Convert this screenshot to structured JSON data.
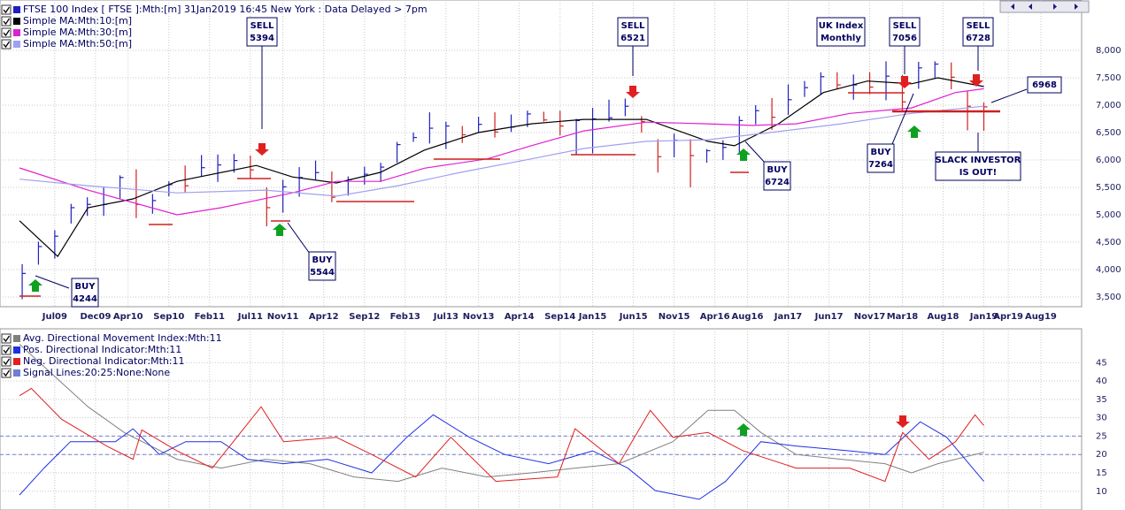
{
  "chart_data": [
    {
      "type": "ohlc",
      "name": "FTSE 100 Index [ FTSE ]:Mth:[m]  31Jan2019 16:45 New York : Data Delayed > 7pm",
      "color": "#2020c0",
      "up_color": "#2020c0",
      "down_color": "#d02020",
      "xlim": [
        2008.94,
        2020.0
      ],
      "ylim": [
        3323,
        8919
      ],
      "xticks": [
        {
          "value": 2009.5,
          "label": "Jul09"
        },
        {
          "value": 2009.917,
          "label": "Dec09"
        },
        {
          "value": 2010.25,
          "label": "Apr10"
        },
        {
          "value": 2010.667,
          "label": "Sep10"
        },
        {
          "value": 2011.083,
          "label": "Feb11"
        },
        {
          "value": 2011.5,
          "label": "Jul11"
        },
        {
          "value": 2011.833,
          "label": "Nov11"
        },
        {
          "value": 2012.25,
          "label": "Apr12"
        },
        {
          "value": 2012.667,
          "label": "Sep12"
        },
        {
          "value": 2013.083,
          "label": "Feb13"
        },
        {
          "value": 2013.5,
          "label": "Jul13"
        },
        {
          "value": 2013.833,
          "label": "Nov13"
        },
        {
          "value": 2014.25,
          "label": "Apr14"
        },
        {
          "value": 2014.667,
          "label": "Sep14"
        },
        {
          "value": 2015.0,
          "label": "Jan15"
        },
        {
          "value": 2015.417,
          "label": "Jun15"
        },
        {
          "value": 2015.833,
          "label": "Nov15"
        },
        {
          "value": 2016.25,
          "label": "Apr16"
        },
        {
          "value": 2016.583,
          "label": "Aug16"
        },
        {
          "value": 2017.0,
          "label": "Jan17"
        },
        {
          "value": 2017.417,
          "label": "Jun17"
        },
        {
          "value": 2017.833,
          "label": "Nov17"
        },
        {
          "value": 2018.167,
          "label": "Mar18"
        },
        {
          "value": 2018.583,
          "label": "Aug18"
        },
        {
          "value": 2019.0,
          "label": "Jan19"
        },
        {
          "value": 2019.25,
          "label": "Apr19"
        },
        {
          "value": 2019.583,
          "label": "Aug19"
        }
      ],
      "yticks": [
        {
          "value": 3500,
          "label": "3,500"
        },
        {
          "value": 4000,
          "label": "4,000"
        },
        {
          "value": 4500,
          "label": "4,500"
        },
        {
          "value": 5000,
          "label": "5,000"
        },
        {
          "value": 5500,
          "label": "5,500"
        },
        {
          "value": 6000,
          "label": "6,000"
        },
        {
          "value": 6500,
          "label": "6,500"
        },
        {
          "value": 7000,
          "label": "7,000"
        },
        {
          "value": 7500,
          "label": "7,500"
        },
        {
          "value": 8000,
          "label": "8,000"
        }
      ],
      "grid": true,
      "x": [
        2009.167,
        2009.333,
        2009.5,
        2009.667,
        2009.833,
        2010.0,
        2010.167,
        2010.333,
        2010.5,
        2010.667,
        2010.833,
        2011.0,
        2011.167,
        2011.333,
        2011.5,
        2011.667,
        2011.833,
        2012.0,
        2012.167,
        2012.333,
        2012.5,
        2012.667,
        2012.833,
        2013.0,
        2013.167,
        2013.333,
        2013.5,
        2013.667,
        2013.833,
        2014.0,
        2014.167,
        2014.333,
        2014.5,
        2014.667,
        2014.833,
        2015.0,
        2015.167,
        2015.333,
        2015.5,
        2015.667,
        2015.833,
        2016.0,
        2016.167,
        2016.333,
        2016.5,
        2016.667,
        2016.833,
        2017.0,
        2017.167,
        2017.333,
        2017.5,
        2017.667,
        2017.833,
        2018.0,
        2018.167,
        2018.333,
        2018.5,
        2018.667,
        2018.833,
        2019.0
      ],
      "high": [
        4100,
        4510,
        4720,
        5200,
        5320,
        5500,
        5720,
        5830,
        5380,
        5610,
        5900,
        6090,
        6100,
        6110,
        6080,
        5500,
        5640,
        5870,
        5990,
        5790,
        5700,
        5880,
        5950,
        6330,
        6500,
        6870,
        6700,
        6620,
        6790,
        6870,
        6830,
        6900,
        6880,
        6900,
        6750,
        6950,
        7100,
        7120,
        6800,
        6380,
        6480,
        6380,
        6200,
        6360,
        6800,
        7000,
        7130,
        7380,
        7440,
        7600,
        7600,
        7560,
        7600,
        7800,
        7550,
        7790,
        7800,
        7780,
        7250,
        7050
      ],
      "low": [
        3460,
        4090,
        4200,
        4840,
        4980,
        4980,
        5300,
        4940,
        5020,
        5340,
        5400,
        5700,
        5600,
        5770,
        5650,
        4790,
        5040,
        5330,
        5640,
        5230,
        5350,
        5550,
        5600,
        5950,
        6330,
        6300,
        6200,
        6310,
        6510,
        6410,
        6510,
        6600,
        6700,
        6450,
        6100,
        6120,
        6700,
        6800,
        6500,
        5770,
        6050,
        5500,
        5950,
        6000,
        6100,
        6650,
        6550,
        6820,
        7150,
        7200,
        7300,
        7100,
        7200,
        7090,
        6870,
        7300,
        7500,
        7290,
        6540,
        6530
      ],
      "close": [
        3930,
        4420,
        4610,
        5130,
        5190,
        5190,
        5680,
        5190,
        5260,
        5550,
        5530,
        5860,
        5910,
        5990,
        5820,
        5130,
        5510,
        5680,
        5770,
        5320,
        5640,
        5740,
        5870,
        6280,
        6410,
        6580,
        6620,
        6460,
        6650,
        6510,
        6600,
        6840,
        6730,
        6620,
        6720,
        6750,
        6770,
        6980,
        6700,
        6060,
        6360,
        6080,
        6170,
        6230,
        6720,
        6900,
        6780,
        7100,
        7320,
        7520,
        7370,
        7370,
        7330,
        7530,
        7060,
        7680,
        7750,
        7510,
        6980,
        6970
      ],
      "overlays": [
        {
          "name": "Simple MA:Mth:10:[m]",
          "color": "#000000",
          "x": [
            2009.14,
            2009.53,
            2009.84,
            2010.3,
            2010.75,
            2011.56,
            2011.93,
            2012.38,
            2012.83,
            2013.28,
            2013.83,
            2014.37,
            2014.91,
            2015.55,
            2016.18,
            2016.45,
            2016.9,
            2017.36,
            2017.81,
            2018.26,
            2018.53,
            2019.0
          ],
          "values": [
            4890,
            4240,
            5130,
            5290,
            5610,
            5900,
            5690,
            5580,
            5775,
            6180,
            6500,
            6660,
            6740,
            6740,
            6340,
            6260,
            6660,
            7230,
            7440,
            7390,
            7500,
            7340
          ]
        },
        {
          "name": "Simple MA:Mth:30:[m]",
          "color": "#e020d0",
          "x": [
            2009.14,
            2009.84,
            2010.75,
            2011.2,
            2011.93,
            2012.38,
            2012.83,
            2013.28,
            2013.92,
            2014.37,
            2014.91,
            2015.55,
            2016.18,
            2016.63,
            2017.08,
            2017.63,
            2018.26,
            2018.71,
            2019.0
          ],
          "values": [
            5855,
            5450,
            5000,
            5130,
            5400,
            5610,
            5610,
            5850,
            6020,
            6260,
            6530,
            6690,
            6660,
            6630,
            6660,
            6850,
            6950,
            7230,
            7300
          ]
        },
        {
          "name": "Simple MA:Mth:50:[m]",
          "color": "#a0a0f0",
          "x": [
            2009.14,
            2009.84,
            2010.75,
            2011.65,
            2012.38,
            2013.01,
            2013.65,
            2014.37,
            2014.91,
            2015.55,
            2016.18,
            2016.81,
            2017.54,
            2018.26,
            2019.0
          ],
          "values": [
            5650,
            5530,
            5400,
            5450,
            5340,
            5530,
            5775,
            6020,
            6210,
            6340,
            6370,
            6500,
            6660,
            6850,
            6980
          ]
        }
      ],
      "annotations": [
        {
          "lines": [
            "SELL",
            "5394"
          ]
        },
        {
          "lines": [
            "BUY",
            "4244"
          ]
        },
        {
          "lines": [
            "BUY",
            "5544"
          ]
        },
        {
          "lines": [
            "SELL",
            "6521"
          ]
        },
        {
          "lines": [
            "BUY",
            "6724"
          ]
        },
        {
          "lines": [
            "UK Index",
            "Monthly"
          ]
        },
        {
          "lines": [
            "SELL",
            "7056"
          ]
        },
        {
          "lines": [
            "BUY",
            "7264"
          ]
        },
        {
          "lines": [
            "SELL",
            "6728"
          ]
        },
        {
          "lines": [
            "SLACK INVESTOR",
            "IS OUT!"
          ]
        },
        {
          "lines": [
            "6968"
          ]
        }
      ]
    },
    {
      "type": "line",
      "xlim": [
        2008.94,
        2020.0
      ],
      "ylim": [
        4.9,
        54.2
      ],
      "yticks": [
        10,
        15,
        20,
        25,
        30,
        35,
        40,
        45
      ],
      "grid": true,
      "signal_lines": {
        "name": "Signal Lines:20:25:None:None",
        "color": "#7080d0",
        "values": [
          20,
          25
        ]
      },
      "series": [
        {
          "name": "Avg. Directional Movement Index:Mth:11",
          "color": "#808080",
          "x": [
            2009.14,
            2009.84,
            2010.21,
            2010.75,
            2011.2,
            2011.65,
            2012.11,
            2012.56,
            2013.01,
            2013.46,
            2013.92,
            2014.37,
            2014.82,
            2015.27,
            2015.82,
            2016.18,
            2016.45,
            2016.72,
            2017.08,
            2017.54,
            2017.99,
            2018.26,
            2018.53,
            2019.0
          ],
          "values": [
            50,
            33,
            26,
            18.7,
            16.3,
            18.7,
            17.5,
            13.9,
            12.7,
            16.3,
            13.9,
            15,
            16.3,
            17.5,
            23.5,
            32,
            32,
            26,
            20,
            18.7,
            17.5,
            15,
            17.5,
            20.6
          ]
        },
        {
          "name": "Pos. Directional Indicator:Mth:11",
          "color": "#2030e0",
          "x": [
            2009.14,
            2009.39,
            2009.66,
            2010.12,
            2010.3,
            2010.57,
            2010.84,
            2011.2,
            2011.47,
            2011.84,
            2012.29,
            2012.74,
            2013.1,
            2013.37,
            2013.74,
            2014.1,
            2014.55,
            2015.0,
            2015.36,
            2015.64,
            2016.09,
            2016.36,
            2016.72,
            2017.08,
            2017.63,
            2017.99,
            2018.35,
            2018.62,
            2019.0
          ],
          "values": [
            9,
            16.3,
            23.5,
            23.5,
            27,
            20,
            23.5,
            23.5,
            18.7,
            17.5,
            18.7,
            15,
            24.7,
            30.8,
            24.7,
            20,
            17.5,
            21,
            16.3,
            10.2,
            7.8,
            12.7,
            23.5,
            22.3,
            21,
            20,
            28.9,
            24.7,
            12.7
          ]
        },
        {
          "name": "Neg. Directional Indicator:Mth:11",
          "color": "#e02020",
          "x": [
            2009.14,
            2009.26,
            2009.57,
            2010.03,
            2010.3,
            2010.39,
            2010.75,
            2011.11,
            2011.61,
            2011.84,
            2012.38,
            2012.74,
            2013.19,
            2013.55,
            2014.01,
            2014.64,
            2014.82,
            2015.27,
            2015.59,
            2015.82,
            2016.18,
            2016.54,
            2017.08,
            2017.63,
            2017.99,
            2018.17,
            2018.44,
            2018.71,
            2018.91,
            2019.0
          ],
          "values": [
            36,
            38,
            29.6,
            22.3,
            18.7,
            26.7,
            21,
            16.3,
            33,
            23.5,
            24.7,
            20,
            13.9,
            24.7,
            12.7,
            13.9,
            27,
            17.5,
            32,
            24.7,
            26,
            21,
            16.3,
            16.3,
            12.7,
            26,
            18.7,
            23.5,
            30.8,
            27.9
          ]
        }
      ]
    }
  ]
}
